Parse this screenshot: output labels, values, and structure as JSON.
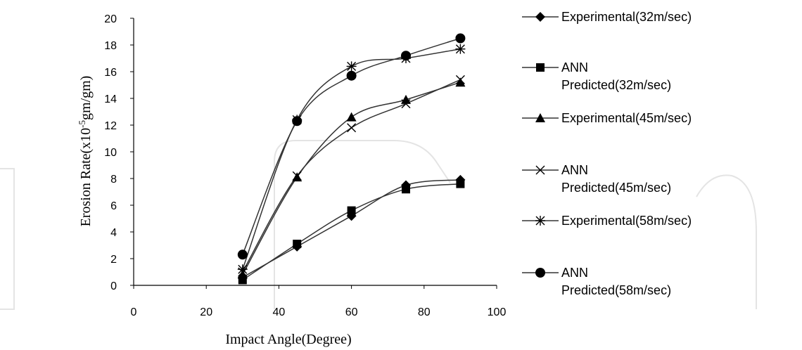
{
  "chart_data": {
    "type": "line",
    "title": "",
    "xlabel": "Impact Angle(Degree)",
    "ylabel_main": "Erosion Rate(x10",
    "ylabel_exp": "-5",
    "ylabel_tail": "gm/gm)",
    "xlim": [
      0,
      100
    ],
    "ylim": [
      0,
      20
    ],
    "xticks": [
      "0",
      "20",
      "40",
      "60",
      "80",
      "100"
    ],
    "yticks": [
      "0",
      "2",
      "4",
      "6",
      "8",
      "10",
      "12",
      "14",
      "16",
      "18",
      "20"
    ],
    "grid": false,
    "legend_position": "right",
    "x": [
      30,
      45,
      60,
      75,
      90
    ],
    "series": [
      {
        "name": "Experimental(32m/sec)",
        "marker": "diamond",
        "values": [
          0.6,
          2.9,
          5.2,
          7.5,
          7.9
        ]
      },
      {
        "name": "ANN Predicted(32m/sec)",
        "marker": "square",
        "values": [
          0.4,
          3.1,
          5.6,
          7.2,
          7.6
        ]
      },
      {
        "name": "Experimental(45m/sec)",
        "marker": "triangle",
        "values": [
          0.8,
          8.1,
          12.6,
          13.9,
          15.2
        ]
      },
      {
        "name": "ANN Predicted(45m/sec)",
        "marker": "x",
        "values": [
          1.0,
          8.2,
          11.8,
          13.6,
          15.4
        ]
      },
      {
        "name": "Experimental(58m/sec)",
        "marker": "asterisk",
        "values": [
          1.2,
          12.4,
          16.4,
          17.0,
          17.7
        ]
      },
      {
        "name": "ANN Predicted(58m/sec)",
        "marker": "circle",
        "values": [
          2.3,
          12.3,
          15.7,
          17.2,
          18.5
        ]
      }
    ]
  }
}
